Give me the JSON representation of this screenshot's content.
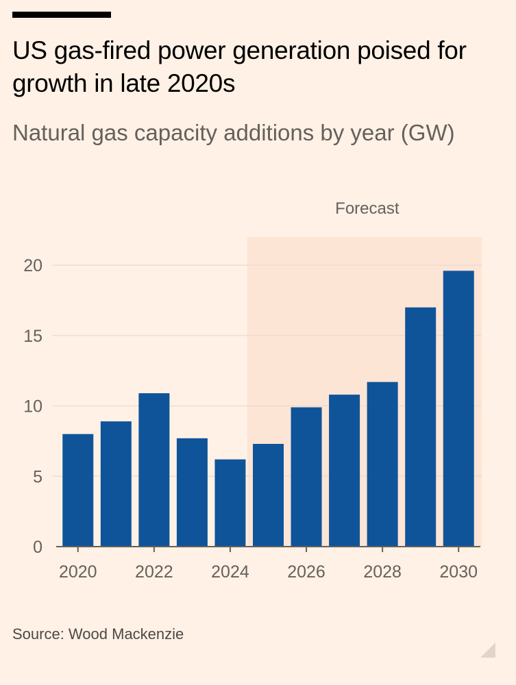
{
  "header": {
    "title": "US gas-fired power generation poised for growth in late 2020s",
    "subtitle": "Natural gas capacity additions by year (GW)"
  },
  "footer": {
    "source": "Source: Wood Mackenzie"
  },
  "colors": {
    "background": "#fff1e5",
    "bar": "#0f5499",
    "forecast_band": "#fde5d6",
    "gridline": "#e6d9ce",
    "axis": "#66605c",
    "tick_text": "#66605c"
  },
  "chart_data": {
    "type": "bar",
    "title": "US gas-fired power generation poised for growth in late 2020s",
    "subtitle": "Natural gas capacity additions by year (GW)",
    "xlabel": "",
    "ylabel": "GW",
    "categories": [
      "2020",
      "2021",
      "2022",
      "2023",
      "2024",
      "2025",
      "2026",
      "2027",
      "2028",
      "2029",
      "2030"
    ],
    "values": [
      8.0,
      8.9,
      10.9,
      7.7,
      6.2,
      7.3,
      9.9,
      10.8,
      11.7,
      17.0,
      19.6
    ],
    "x_tick_labels": [
      "2020",
      "2022",
      "2024",
      "2026",
      "2028",
      "2030"
    ],
    "y_ticks": [
      0,
      5,
      10,
      15,
      20
    ],
    "ylim": [
      0,
      22
    ],
    "grid": true,
    "annotations": [
      {
        "text": "Forecast",
        "type": "shaded-range",
        "from": "2025",
        "to": "2030"
      }
    ]
  }
}
